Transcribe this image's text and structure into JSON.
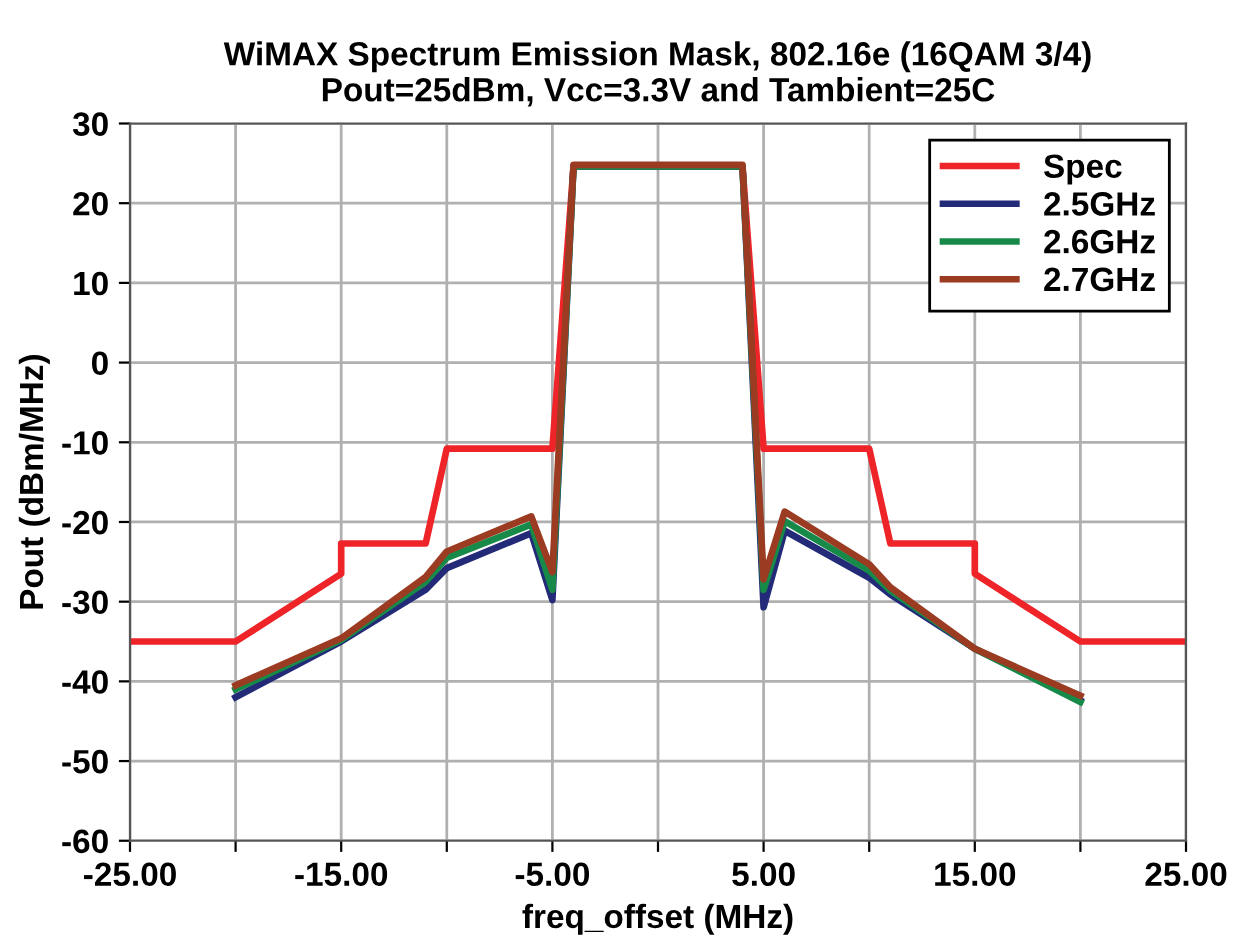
{
  "chart_data": {
    "type": "line",
    "title": "WiMAX Spectrum Emission Mask, 802.16e (16QAM 3/4)\nPout=25dBm, Vcc=3.3V and Tambient=25C",
    "xlabel": "freq_offset (MHz)",
    "ylabel": "Pout (dBm/MHz)",
    "xlim": [
      -25,
      25
    ],
    "ylim": [
      -60,
      30
    ],
    "xticks": [
      {
        "value": -25,
        "label": "-25.00"
      },
      {
        "value": -20,
        "label": null
      },
      {
        "value": -15,
        "label": "-15.00"
      },
      {
        "value": -10,
        "label": null
      },
      {
        "value": -5,
        "label": "-5.00"
      },
      {
        "value": 0,
        "label": null
      },
      {
        "value": 5,
        "label": "5.00"
      },
      {
        "value": 10,
        "label": null
      },
      {
        "value": 15,
        "label": "15.00"
      },
      {
        "value": 20,
        "label": null
      },
      {
        "value": 25,
        "label": "25.00"
      }
    ],
    "yticks": [
      -60,
      -50,
      -40,
      -30,
      -20,
      -10,
      0,
      10,
      20,
      30
    ],
    "grid": true,
    "legend": "top right",
    "marker": "none",
    "line_style": "solid",
    "series": [
      {
        "name": "Spec",
        "color": "#ee2428",
        "x": [
          -25,
          -20,
          -15,
          -15,
          -11,
          -10,
          -5,
          -4,
          4,
          5,
          10,
          11,
          15,
          15,
          20,
          25
        ],
        "values": [
          -35,
          -35,
          -26.5,
          -22.7,
          -22.7,
          -10.8,
          -10.8,
          24.6,
          24.6,
          -10.8,
          -10.8,
          -22.7,
          -22.7,
          -26.5,
          -35,
          -35
        ]
      },
      {
        "name": "2.5GHz",
        "color": "#232a78",
        "x": [
          -20,
          -15,
          -11,
          -10,
          -6,
          -5,
          -4,
          4,
          5,
          6,
          10,
          11,
          15,
          20
        ],
        "values": [
          -42,
          -35,
          -28.5,
          -25.8,
          -21.4,
          -29.8,
          24.6,
          24.6,
          -30.7,
          -21.1,
          -27,
          -29.1,
          -35.9,
          -42.4
        ]
      },
      {
        "name": "2.6GHz",
        "color": "#178a4a",
        "x": [
          -20,
          -15,
          -11,
          -10,
          -6,
          -5,
          -4,
          4,
          5,
          6,
          10,
          11,
          15,
          20
        ],
        "values": [
          -41,
          -34.8,
          -27.5,
          -24.5,
          -20.3,
          -28.5,
          24.6,
          24.6,
          -28.5,
          -19.9,
          -26.1,
          -28.6,
          -35.9,
          -42.6
        ]
      },
      {
        "name": "2.7GHz",
        "color": "#9b3b22",
        "x": [
          -20,
          -15,
          -11,
          -10,
          -6,
          -5,
          -4,
          4,
          5,
          6,
          10,
          11,
          15,
          20
        ],
        "values": [
          -40.5,
          -34.6,
          -26.9,
          -23.7,
          -19.3,
          -26.3,
          24.8,
          24.8,
          -27.2,
          -18.7,
          -25.3,
          -28.2,
          -35.9,
          -41.8
        ]
      }
    ]
  }
}
